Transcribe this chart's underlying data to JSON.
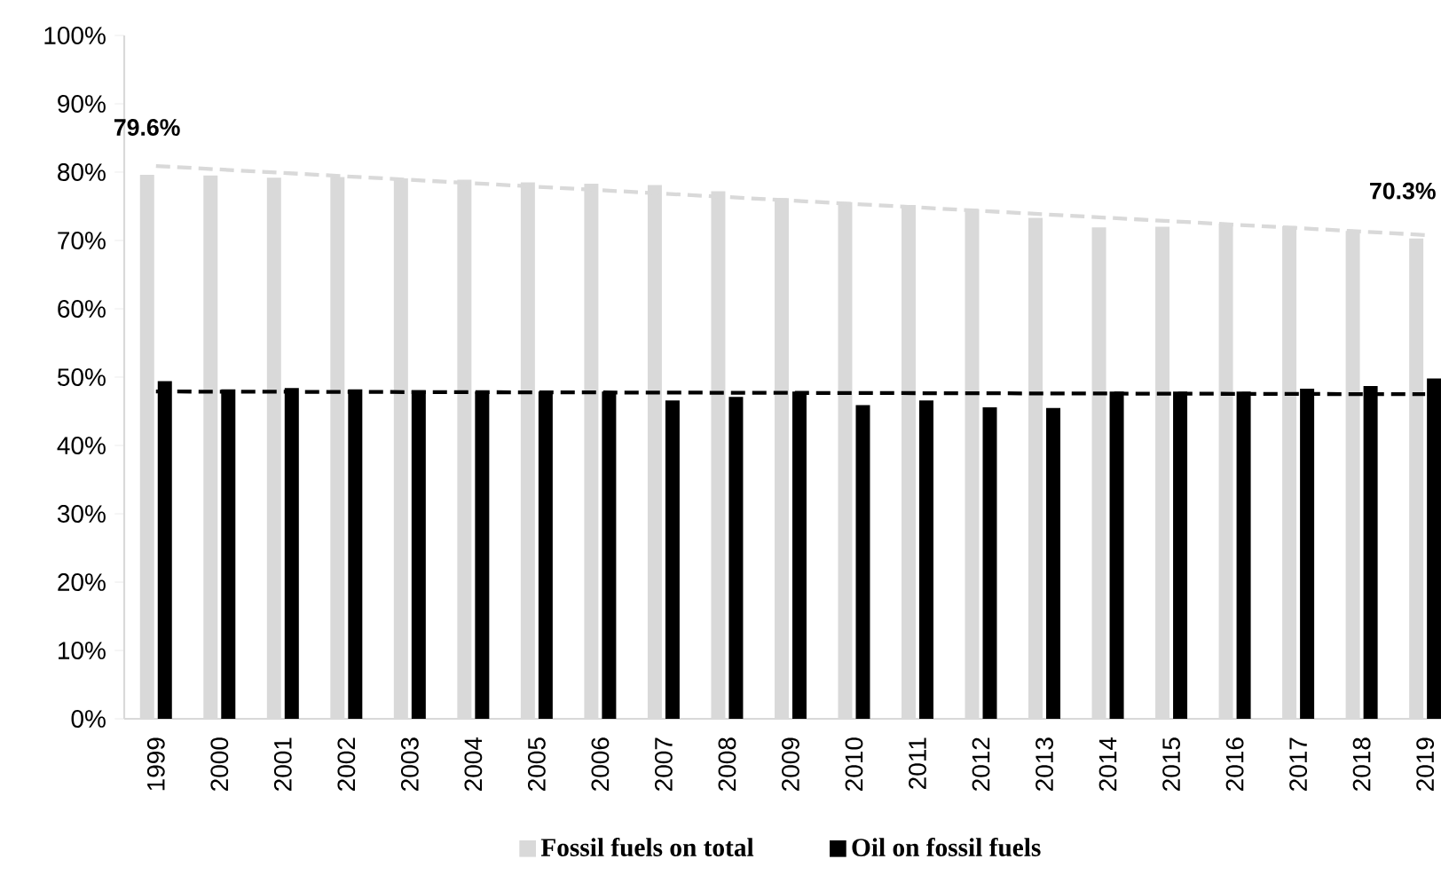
{
  "chart_data": {
    "type": "bar",
    "categories": [
      "1999",
      "2000",
      "2001",
      "2002",
      "2003",
      "2004",
      "2005",
      "2006",
      "2007",
      "2008",
      "2009",
      "2010",
      "2011",
      "2012",
      "2013",
      "2014",
      "2015",
      "2016",
      "2017",
      "2018",
      "2019"
    ],
    "series": [
      {
        "name": "Fossil fuels on total",
        "color": "#d9d9d9",
        "values": [
          79.6,
          79.5,
          79.2,
          79.3,
          79.1,
          78.9,
          78.5,
          78.3,
          78.1,
          77.2,
          76.2,
          75.6,
          75.2,
          74.6,
          73.3,
          71.9,
          72.0,
          72.5,
          72.1,
          71.4,
          70.3
        ],
        "value_labels": [
          "79.6%",
          null,
          null,
          null,
          null,
          null,
          null,
          null,
          null,
          null,
          null,
          null,
          null,
          null,
          null,
          null,
          null,
          null,
          null,
          null,
          "70.3%"
        ]
      },
      {
        "name": "Oil on fossil fuels",
        "color": "#000000",
        "values": [
          49.4,
          48.2,
          48.4,
          48.2,
          48.1,
          47.9,
          47.9,
          47.9,
          46.6,
          47.1,
          47.9,
          45.9,
          46.6,
          45.6,
          45.5,
          47.9,
          47.9,
          47.9,
          48.3,
          48.7,
          49.8
        ]
      },
      {
        "type": "line",
        "line_style": "dashed",
        "color": "#d9d9d9",
        "values": [
          80.9,
          null,
          null,
          null,
          null,
          null,
          null,
          null,
          null,
          null,
          null,
          null,
          null,
          null,
          null,
          null,
          null,
          null,
          null,
          null,
          70.8
        ]
      },
      {
        "type": "line",
        "line_style": "dashed",
        "color": "#000000",
        "values": [
          47.9,
          null,
          null,
          null,
          null,
          null,
          null,
          null,
          null,
          null,
          null,
          null,
          null,
          null,
          null,
          null,
          null,
          null,
          null,
          null,
          47.5
        ]
      }
    ],
    "ylim": [
      0,
      100
    ],
    "yticks": [
      {
        "value": 0,
        "label": "0%"
      },
      {
        "value": 10,
        "label": "10%"
      },
      {
        "value": 20,
        "label": "20%"
      },
      {
        "value": 30,
        "label": "30%"
      },
      {
        "value": 40,
        "label": "40%"
      },
      {
        "value": 50,
        "label": "50%"
      },
      {
        "value": 60,
        "label": "60%"
      },
      {
        "value": 70,
        "label": "70%"
      },
      {
        "value": 80,
        "label": "80%"
      },
      {
        "value": 90,
        "label": "90%"
      },
      {
        "value": 100,
        "label": "100%"
      }
    ],
    "grid": false,
    "legend": "bottom"
  }
}
